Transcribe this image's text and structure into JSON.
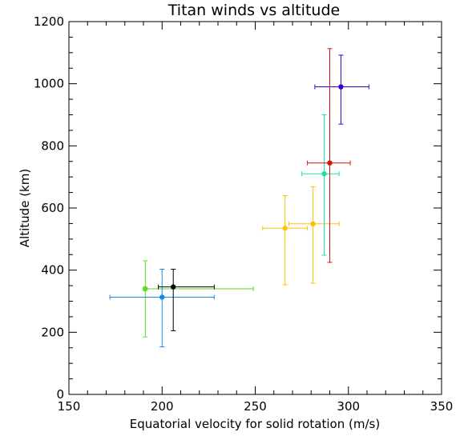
{
  "chart_data": {
    "type": "scatter",
    "title": "Titan winds vs altitude",
    "xlabel": "Equatorial velocity for solid rotation (m/s)",
    "ylabel": "Altitude (km)",
    "xlim": [
      150,
      350
    ],
    "ylim": [
      0,
      1200
    ],
    "xticks": [
      150,
      200,
      250,
      300,
      350
    ],
    "yticks": [
      0,
      200,
      400,
      600,
      800,
      1000,
      1200
    ],
    "grid": false,
    "points": [
      {
        "x": 191,
        "y": 340,
        "xerr": [
          190,
          249
        ],
        "yerr": [
          185,
          430
        ],
        "color": "#55dd22"
      },
      {
        "x": 200,
        "y": 313,
        "xerr": [
          172,
          228
        ],
        "yerr": [
          153,
          403
        ],
        "color": "#1188ee"
      },
      {
        "x": 206,
        "y": 346,
        "xerr": [
          198,
          228
        ],
        "yerr": [
          205,
          403
        ],
        "color": "#000000"
      },
      {
        "x": 266,
        "y": 535,
        "xerr": [
          254,
          278
        ],
        "yerr": [
          353,
          640
        ],
        "color": "#ffc000"
      },
      {
        "x": 281,
        "y": 549,
        "xerr": [
          268,
          295
        ],
        "yerr": [
          358,
          668
        ],
        "color": "#ffc000"
      },
      {
        "x": 287,
        "y": 710,
        "xerr": [
          275,
          295
        ],
        "yerr": [
          448,
          900
        ],
        "color": "#22e0a0"
      },
      {
        "x": 290,
        "y": 745,
        "xerr": [
          278,
          301
        ],
        "yerr": [
          425,
          1113
        ],
        "color": "#dd1111"
      },
      {
        "x": 296,
        "y": 990,
        "xerr": [
          282,
          311
        ],
        "yerr": [
          870,
          1092
        ],
        "color": "#3300cc"
      }
    ]
  }
}
